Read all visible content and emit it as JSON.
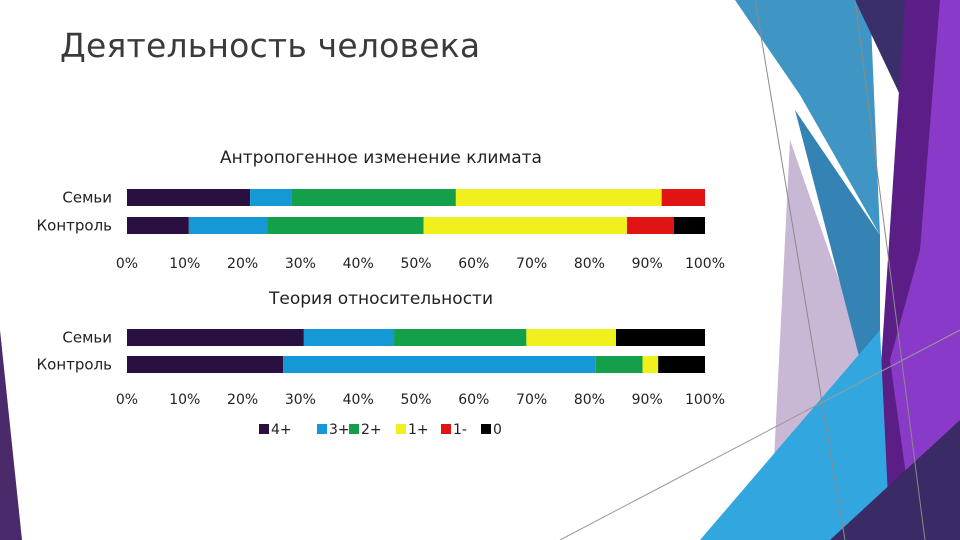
{
  "slide": {
    "title": "Деятельность человека"
  },
  "colors": {
    "decor_dark": "#5b2b78",
    "decor_purple": "#7e2fa8",
    "decor_blue": "#3aa0d4",
    "decor_lavender": "#c9b9d6"
  },
  "legend": [
    {
      "name": "4+",
      "color": "#2a1040"
    },
    {
      "name": "3+",
      "color": "#1499d6"
    },
    {
      "name": "2+",
      "color": "#14a04a"
    },
    {
      "name": "1+",
      "color": "#f0f01c"
    },
    {
      "name": "1-",
      "color": "#e01414"
    },
    {
      "name": "0",
      "color": "#000000"
    }
  ],
  "chart_data": [
    {
      "type": "bar",
      "orientation": "horizontal",
      "stacked": true,
      "percent": true,
      "title": "Антропогенное изменение климата",
      "categories": [
        "Семьи",
        "Контроль"
      ],
      "series": [
        {
          "name": "4+",
          "values": [
            21.3,
            10.7
          ]
        },
        {
          "name": "3+",
          "values": [
            7.1,
            13.6
          ]
        },
        {
          "name": "2+",
          "values": [
            28.5,
            27.0
          ]
        },
        {
          "name": "1+",
          "values": [
            35.6,
            35.2
          ]
        },
        {
          "name": "1-",
          "values": [
            7.5,
            8.1
          ]
        },
        {
          "name": "0",
          "values": [
            0.0,
            5.4
          ]
        }
      ],
      "xlim": [
        0,
        100
      ],
      "ticks": [
        "0%",
        "10%",
        "20%",
        "30%",
        "40%",
        "50%",
        "60%",
        "70%",
        "80%",
        "90%",
        "100%"
      ],
      "grid": false
    },
    {
      "type": "bar",
      "orientation": "horizontal",
      "stacked": true,
      "percent": true,
      "title": "Теория относительности",
      "categories": [
        "Семьи",
        "Контроль"
      ],
      "series": [
        {
          "name": "4+",
          "values": [
            30.6,
            27.0
          ]
        },
        {
          "name": "3+",
          "values": [
            15.6,
            54.1
          ]
        },
        {
          "name": "2+",
          "values": [
            22.9,
            8.1
          ]
        },
        {
          "name": "1+",
          "values": [
            15.5,
            2.7
          ]
        },
        {
          "name": "1-",
          "values": [
            0.0,
            0.0
          ]
        },
        {
          "name": "0",
          "values": [
            15.4,
            8.1
          ]
        }
      ],
      "xlim": [
        0,
        100
      ],
      "ticks": [
        "0%",
        "10%",
        "20%",
        "30%",
        "40%",
        "50%",
        "60%",
        "70%",
        "80%",
        "90%",
        "100%"
      ],
      "grid": false
    }
  ]
}
